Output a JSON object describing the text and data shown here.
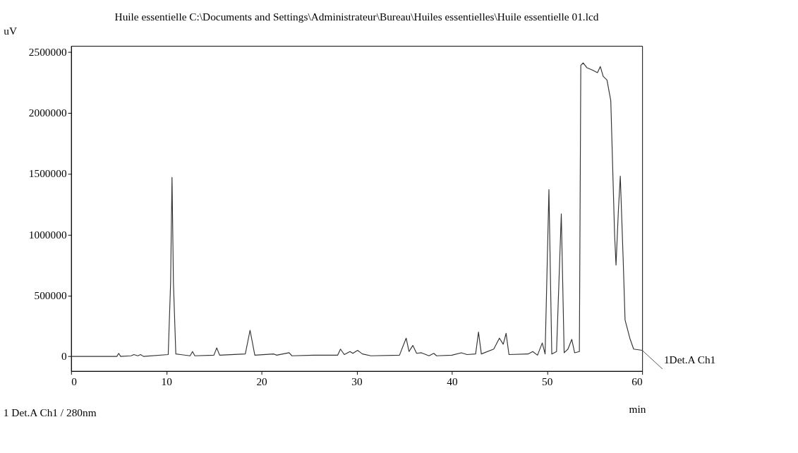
{
  "chart_data": {
    "type": "line",
    "title": "Huile essentielle C:\\Documents and Settings\\Administrateur\\Bureau\\Huiles essentielles\\Huile essentielle 01.lcd",
    "xlabel": "min",
    "ylabel": "uV",
    "x": [
      0,
      4.8,
      5.0,
      5.2,
      6.3,
      6.6,
      7.0,
      7.3,
      7.6,
      10.2,
      10.45,
      10.6,
      10.75,
      11.0,
      12.5,
      12.75,
      13.0,
      15.0,
      15.3,
      15.6,
      18.3,
      18.8,
      19.3,
      21.3,
      21.6,
      22.9,
      23.2,
      25.5,
      28.0,
      28.3,
      28.7,
      29.3,
      29.6,
      30.1,
      30.6,
      31.5,
      34.5,
      35.2,
      35.5,
      35.9,
      36.3,
      36.8,
      37.6,
      38.1,
      38.4,
      40.0,
      41.0,
      41.6,
      42.5,
      42.8,
      43.1,
      44.4,
      45.0,
      45.4,
      45.7,
      46.0,
      48.0,
      48.5,
      49.0,
      49.5,
      49.8,
      50.2,
      50.5,
      51.0,
      51.5,
      51.8,
      52.2,
      52.6,
      52.9,
      53.4,
      53.55,
      53.8,
      54.2,
      54.8,
      55.3,
      55.6,
      55.9,
      56.3,
      56.7,
      57.1,
      57.25,
      57.5,
      57.7,
      58.0,
      58.2,
      58.7,
      59.1,
      60
    ],
    "series": [
      {
        "color": "#333333",
        "values": [
          0,
          0,
          25000,
          0,
          5000,
          15000,
          5000,
          15000,
          0,
          15000,
          600000,
          1470000,
          600000,
          20000,
          5000,
          40000,
          5000,
          10000,
          70000,
          10000,
          20000,
          215000,
          10000,
          20000,
          10000,
          30000,
          5000,
          10000,
          10000,
          60000,
          15000,
          40000,
          25000,
          50000,
          20000,
          5000,
          10000,
          150000,
          40000,
          90000,
          25000,
          30000,
          5000,
          25000,
          5000,
          10000,
          30000,
          15000,
          20000,
          200000,
          20000,
          60000,
          150000,
          100000,
          190000,
          15000,
          20000,
          40000,
          10000,
          110000,
          20000,
          1370000,
          20000,
          40000,
          1170000,
          30000,
          60000,
          140000,
          30000,
          40000,
          2390000,
          2410000,
          2370000,
          2350000,
          2330000,
          2380000,
          2300000,
          2270000,
          2100000,
          1000000,
          750000,
          1200000,
          1480000,
          800000,
          300000,
          150000,
          60000,
          50000
        ]
      }
    ],
    "xlim": [
      0,
      60
    ],
    "ylim": [
      -120000,
      2550000
    ],
    "xticks": [
      0,
      10,
      20,
      30,
      40,
      50,
      60
    ],
    "yticks": [
      0,
      500000,
      1000000,
      1500000,
      2000000,
      2500000
    ],
    "grid": false,
    "line_style": "solid",
    "marker": "none",
    "annotations": [
      {
        "text": "1Det.A Ch1",
        "x": 60,
        "y": 50000
      },
      "1    Det.A Ch1 / 280nm"
    ]
  }
}
